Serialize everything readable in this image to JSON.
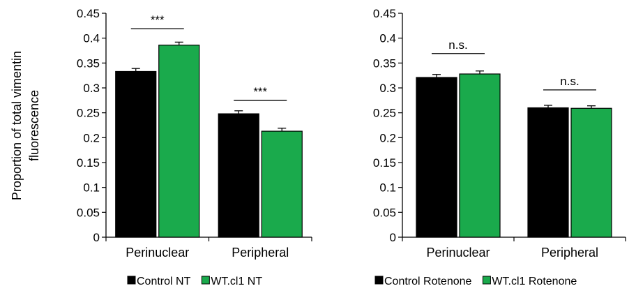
{
  "colors": {
    "control": "#000000",
    "wt": "#1aaa4c",
    "axis": "#000000",
    "error_bar": "#000000"
  },
  "chart_data": [
    {
      "type": "bar",
      "panel": "left",
      "ylabel": "Proportion of total vimentin fluorescence",
      "ylabel_lines": [
        "Proportion of total vimentin",
        "fluorescence"
      ],
      "ylim": [
        0,
        0.45
      ],
      "yticks": [
        0,
        0.05,
        0.1,
        0.15,
        0.2,
        0.25,
        0.3,
        0.35,
        0.4,
        0.45
      ],
      "ytick_labels": [
        "0",
        "0.05",
        "0.1",
        "0.15",
        "0.2",
        "0.25",
        "0.3",
        "0.35",
        "0.4",
        "0.45"
      ],
      "categories": [
        "Perinuclear",
        "Peripheral"
      ],
      "series": [
        {
          "name": "Control NT",
          "color": "#000000",
          "values": [
            0.333,
            0.248
          ],
          "errors": [
            0.006,
            0.006
          ]
        },
        {
          "name": "WT.cl1 NT",
          "color": "#1aaa4c",
          "values": [
            0.386,
            0.213
          ],
          "errors": [
            0.006,
            0.006
          ]
        }
      ],
      "significance": [
        {
          "category_index": 0,
          "label": "***",
          "y": 0.419
        },
        {
          "category_index": 1,
          "label": "***",
          "y": 0.275
        }
      ],
      "legend": "bottom",
      "grid": false
    },
    {
      "type": "bar",
      "panel": "right",
      "ylim": [
        0,
        0.45
      ],
      "yticks": [
        0,
        0.05,
        0.1,
        0.15,
        0.2,
        0.25,
        0.3,
        0.35,
        0.4,
        0.45
      ],
      "ytick_labels": [
        "0",
        "0.05",
        "0.1",
        "0.15",
        "0.2",
        "0.25",
        "0.3",
        "0.35",
        "0.4",
        "0.45"
      ],
      "categories": [
        "Perinuclear",
        "Peripheral"
      ],
      "series": [
        {
          "name": "Control Rotenone",
          "color": "#000000",
          "values": [
            0.321,
            0.26
          ],
          "errors": [
            0.006,
            0.005
          ]
        },
        {
          "name": "WT.cl1 Rotenone",
          "color": "#1aaa4c",
          "values": [
            0.328,
            0.259
          ],
          "errors": [
            0.006,
            0.005
          ]
        }
      ],
      "significance": [
        {
          "category_index": 0,
          "label": "n.s.",
          "y": 0.369
        },
        {
          "category_index": 1,
          "label": "n.s.",
          "y": 0.296
        }
      ],
      "legend": "bottom",
      "grid": false
    }
  ]
}
